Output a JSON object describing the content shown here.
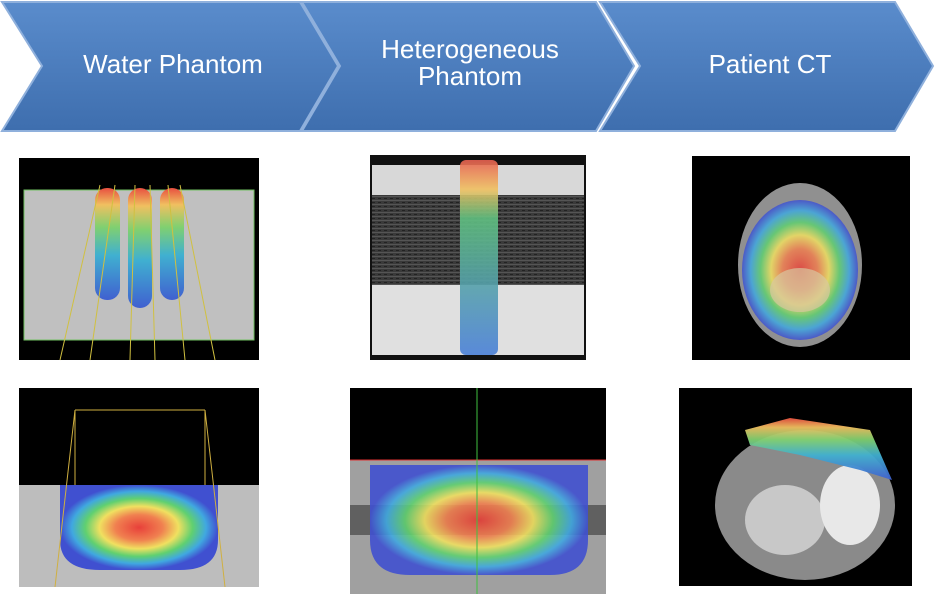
{
  "stages": [
    {
      "lines": [
        "Water Phantom"
      ]
    },
    {
      "lines": [
        "Heterogeneous",
        "Phantom"
      ]
    },
    {
      "lines": [
        "Patient CT"
      ]
    }
  ]
}
